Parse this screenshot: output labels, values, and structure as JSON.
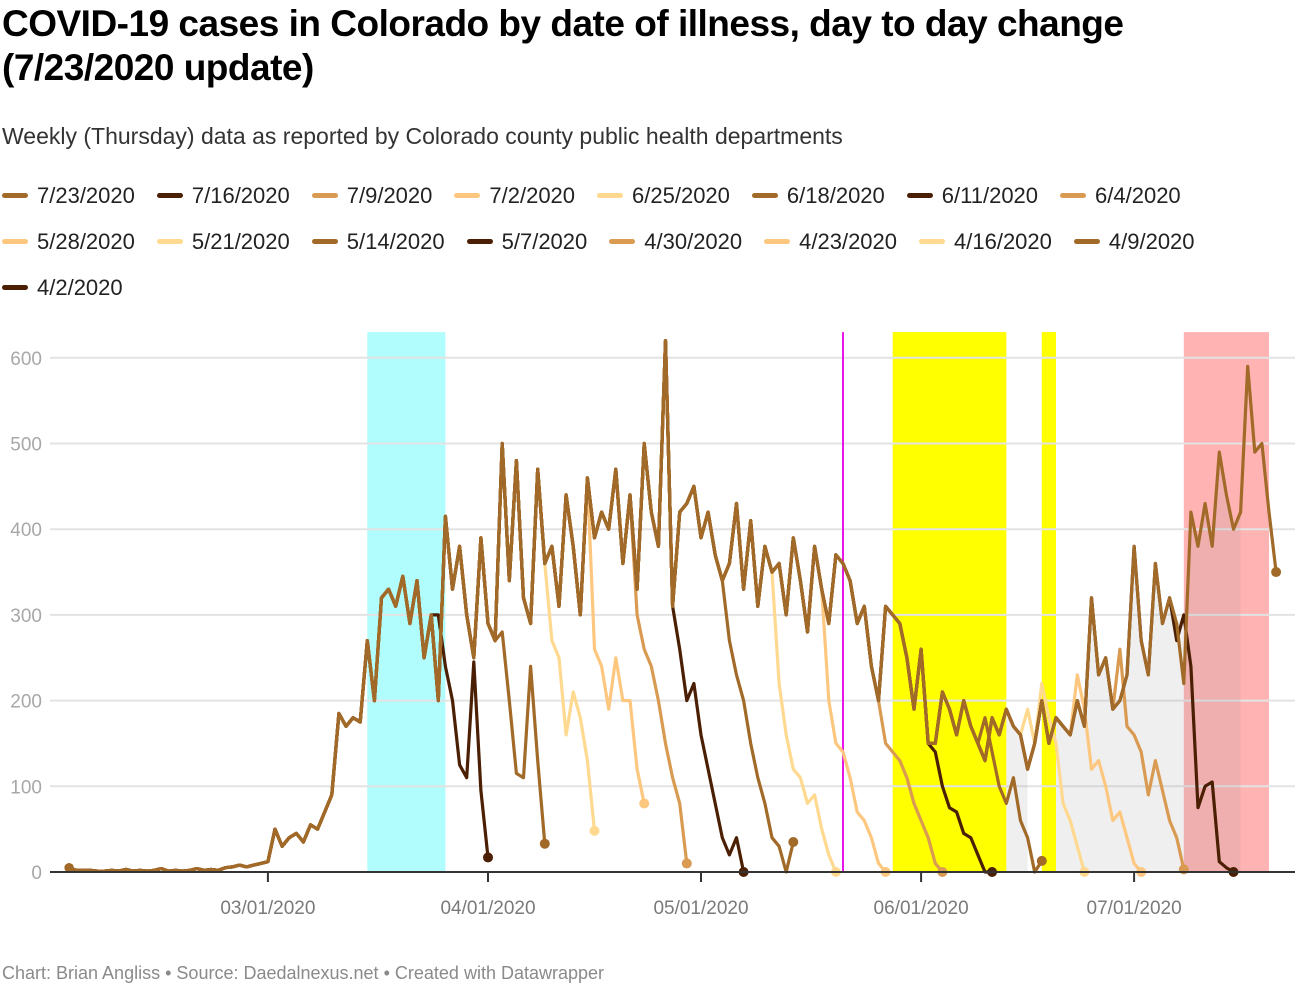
{
  "title": "COVID-19 cases in Colorado by date of illness, day to day change (7/23/2020 update)",
  "subtitle": "Weekly (Thursday) data as reported by Colorado county public health departments",
  "footer": {
    "chart_by": "Chart: Brian Angliss",
    "separator": "•",
    "source": "Source: Daedalnexus.net",
    "created": "Created with Datawrapper"
  },
  "chart_data": {
    "type": "line",
    "title": "COVID-19 cases in Colorado by date of illness, day to day change (7/23/2020 update)",
    "xlabel": "",
    "ylabel": "",
    "x_start": "2020-02-02",
    "x_range": [
      "2020-02-01",
      "2020-07-23"
    ],
    "ylim": [
      0,
      630
    ],
    "yticks": [
      0,
      100,
      200,
      300,
      400,
      500,
      600
    ],
    "xticks": [
      {
        "date": "2020-03-01",
        "label": "03/01/2020"
      },
      {
        "date": "2020-04-01",
        "label": "04/01/2020"
      },
      {
        "date": "2020-05-01",
        "label": "05/01/2020"
      },
      {
        "date": "2020-06-01",
        "label": "06/01/2020"
      },
      {
        "date": "2020-07-01",
        "label": "07/01/2020"
      }
    ],
    "grid": true,
    "legend_position": "top",
    "palette": {
      "dark": "#4a1f03",
      "medium": "#a26a28",
      "tan": "#d99a52",
      "light": "#fdc77f",
      "pale": "#fed98f"
    },
    "highlight_bands": [
      {
        "start": "2020-03-15",
        "end": "2020-03-26",
        "color": "#b1fcfc"
      },
      {
        "start": "2020-05-28",
        "end": "2020-06-13",
        "color": "#ffff00"
      },
      {
        "start": "2020-06-18",
        "end": "2020-06-20",
        "color": "#ffff00"
      },
      {
        "start": "2020-07-08",
        "end": "2020-07-20",
        "color": "#ffb3b3"
      }
    ],
    "gray_bands": [
      {
        "start": "2020-06-13",
        "end": "2020-06-16"
      },
      {
        "start": "2020-06-20",
        "end": "2020-06-23"
      },
      {
        "start": "2020-06-23",
        "end": "2020-06-30"
      },
      {
        "start": "2020-06-30",
        "end": "2020-07-08"
      },
      {
        "start": "2020-07-08",
        "end": "2020-07-16"
      }
    ],
    "vertical_marker": {
      "date": "2020-05-21",
      "color": "#e815e8"
    },
    "base_envelope": [
      5,
      2,
      2,
      2,
      1,
      1,
      2,
      1,
      3,
      1,
      2,
      1,
      2,
      4,
      1,
      2,
      1,
      2,
      4,
      2,
      3,
      2,
      5,
      6,
      8,
      6,
      8,
      10,
      12,
      50,
      30,
      40,
      45,
      35,
      55,
      50,
      70,
      90,
      185,
      170,
      180,
      175,
      270,
      200,
      320,
      330,
      310,
      345,
      290,
      340,
      250,
      300,
      200,
      415,
      330,
      380,
      300,
      250,
      390,
      290,
      270,
      500,
      340,
      480,
      320,
      290,
      470,
      360,
      380,
      310,
      440,
      380,
      300,
      460,
      390,
      420,
      400,
      470,
      360,
      440,
      330,
      500,
      420,
      380,
      620,
      310,
      420,
      430,
      450,
      390,
      420,
      370,
      340,
      360,
      430,
      330,
      410,
      310,
      380,
      350,
      360,
      300,
      390,
      340,
      280,
      380,
      330,
      290,
      370,
      360,
      340,
      290,
      310,
      240,
      200,
      310,
      300,
      290,
      250,
      190,
      260,
      150,
      150,
      210,
      190,
      160,
      200,
      170,
      150,
      130,
      180,
      160,
      190,
      170,
      160,
      120,
      150,
      200,
      150,
      180,
      170,
      160,
      200,
      170,
      320,
      230,
      250,
      190,
      200,
      230,
      380,
      270,
      230,
      360,
      290,
      320,
      290,
      220,
      420,
      380,
      430,
      380,
      490,
      440,
      400,
      420,
      590,
      490,
      500,
      420,
      350,
      320,
      320,
      360,
      250,
      270,
      220,
      130,
      100,
      60,
      10,
      0
    ],
    "series": [
      {
        "name": "7/23/2020",
        "color_key": "medium",
        "end_index": 170,
        "tail": []
      },
      {
        "name": "7/16/2020",
        "color_key": "dark",
        "end_index": 164,
        "tail": [
          270,
          300,
          240,
          75,
          100,
          105,
          12,
          5,
          0
        ]
      },
      {
        "name": "7/9/2020",
        "color_key": "tan",
        "end_index": 157,
        "tail": [
          260,
          170,
          160,
          140,
          90,
          130,
          95,
          60,
          40,
          3
        ]
      },
      {
        "name": "7/2/2020",
        "color_key": "light",
        "end_index": 151,
        "tail": [
          230,
          190,
          120,
          130,
          100,
          60,
          70,
          40,
          10,
          0
        ]
      },
      {
        "name": "6/25/2020",
        "color_key": "pale",
        "end_index": 143,
        "tail": [
          190,
          150,
          220,
          180,
          150,
          80,
          60,
          30,
          0
        ]
      },
      {
        "name": "6/18/2020",
        "color_key": "medium",
        "end_index": 137,
        "tail": [
          150,
          180,
          140,
          100,
          80,
          110,
          60,
          40,
          0,
          13
        ]
      },
      {
        "name": "6/11/2020",
        "color_key": "dark",
        "end_index": 130,
        "tail": [
          150,
          140,
          100,
          75,
          70,
          45,
          40,
          20,
          0,
          0
        ]
      },
      {
        "name": "6/4/2020",
        "color_key": "tan",
        "end_index": 123,
        "tail": [
          150,
          140,
          130,
          110,
          80,
          60,
          40,
          10,
          0
        ]
      },
      {
        "name": "5/28/2020",
        "color_key": "light",
        "end_index": 115,
        "tail": [
          200,
          150,
          140,
          110,
          70,
          60,
          40,
          10,
          0
        ]
      },
      {
        "name": "5/21/2020",
        "color_key": "pale",
        "end_index": 108,
        "tail": [
          220,
          160,
          120,
          110,
          80,
          90,
          50,
          20,
          0
        ]
      },
      {
        "name": "5/14/2020",
        "color_key": "medium",
        "end_index": 102,
        "tail": [
          270,
          230,
          200,
          150,
          110,
          80,
          40,
          30,
          0,
          35
        ]
      },
      {
        "name": "5/7/2020",
        "color_key": "dark",
        "end_index": 95,
        "tail": [
          260,
          200,
          220,
          160,
          120,
          80,
          40,
          20,
          40,
          0
        ]
      },
      {
        "name": "4/30/2020",
        "color_key": "tan",
        "end_index": 87,
        "tail": [
          300,
          260,
          240,
          200,
          150,
          110,
          80,
          10
        ]
      },
      {
        "name": "4/23/2020",
        "color_key": "light",
        "end_index": 81,
        "tail": [
          260,
          240,
          190,
          250,
          200,
          200,
          120,
          80
        ]
      },
      {
        "name": "4/16/2020",
        "color_key": "pale",
        "end_index": 74,
        "tail": [
          270,
          250,
          160,
          210,
          180,
          130,
          48
        ]
      },
      {
        "name": "4/9/2020",
        "color_key": "medium",
        "end_index": 67,
        "tail": [
          280,
          200,
          115,
          110,
          240,
          130,
          33
        ]
      },
      {
        "name": "4/2/2020",
        "color_key": "dark",
        "end_index": 59,
        "tail": [
          300,
          240,
          200,
          125,
          110,
          245,
          95,
          17
        ]
      }
    ]
  }
}
